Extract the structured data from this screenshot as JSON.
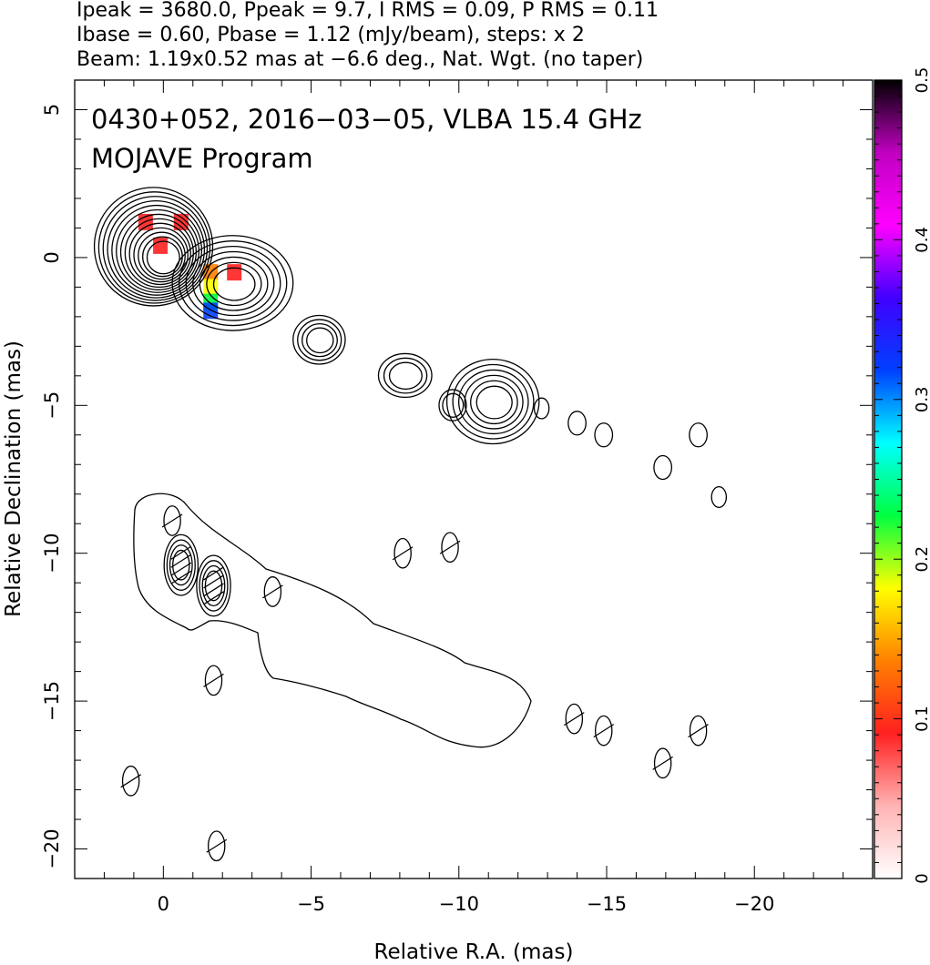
{
  "header": {
    "line1": "Ipeak = 3680.0, Ppeak = 9.7, I RMS = 0.09, P RMS = 0.11",
    "line2": "Ibase = 0.60, Pbase = 1.12 (mJy/beam), steps: x 2",
    "line3": "Beam: 1.19x0.52 mas at −6.6 deg., Nat. Wgt. (no taper)"
  },
  "plot_title": {
    "line1": "0430+052, 2016−03−05, VLBA 15.4 GHz",
    "line2": "MOJAVE Program"
  },
  "chart_data": {
    "type": "heatmap",
    "xlabel": "Relative R.A. (mas)",
    "ylabel": "Relative Declination (mas)",
    "xlim": [
      3,
      -24
    ],
    "ylim": [
      -21,
      6
    ],
    "x_ticks": [
      0,
      -5,
      -10,
      -15,
      -20
    ],
    "x_tick_labels": [
      "0",
      "−5",
      "−10",
      "−15",
      "−20"
    ],
    "y_ticks": [
      5,
      0,
      -5,
      -10,
      -15,
      -20
    ],
    "y_tick_labels": [
      "5",
      "0",
      "−5",
      "−10",
      "−15",
      "−20"
    ],
    "colorbar": {
      "min": 0,
      "max": 0.5,
      "ticks": [
        0,
        0.1,
        0.2,
        0.3,
        0.4,
        0.5
      ],
      "tick_labels": [
        "0",
        "0.1",
        "0.2",
        "0.3",
        "0.4",
        "0.5"
      ],
      "colormap": [
        "#ffffff",
        "#ffb3b3",
        "#ff2020",
        "#ff8000",
        "#ffff00",
        "#00ff40",
        "#00ffff",
        "#0040ff",
        "#4000ff",
        "#ff00ff",
        "#c000c0",
        "#000000"
      ]
    },
    "contour_levels_note": "Ibase = 0.60 mJy/beam, steps x 2",
    "total_intensity_components": [
      {
        "x": 0.0,
        "y": 0.0,
        "peak": 3680.0,
        "levels": 13
      },
      {
        "x": -2.4,
        "y": -0.9,
        "levels": 7
      },
      {
        "x": -5.3,
        "y": -2.8,
        "levels": 4
      },
      {
        "x": -8.2,
        "y": -4.0,
        "levels": 3
      },
      {
        "x": -9.8,
        "y": -5.0,
        "levels": 2
      },
      {
        "x": -11.2,
        "y": -4.9,
        "levels": 6
      },
      {
        "x": -12.8,
        "y": -5.1,
        "levels": 1
      },
      {
        "x": -14.0,
        "y": -5.6,
        "levels": 1
      },
      {
        "x": -14.9,
        "y": -6.0,
        "levels": 1
      },
      {
        "x": -16.9,
        "y": -7.1,
        "levels": 1
      },
      {
        "x": -18.1,
        "y": -6.0,
        "levels": 1
      },
      {
        "x": -18.8,
        "y": -8.1,
        "levels": 1
      }
    ],
    "polarized_intensity_components": [
      {
        "x": -0.3,
        "y": -8.9,
        "levels": 1
      },
      {
        "x": -0.6,
        "y": -10.4,
        "levels": 4
      },
      {
        "x": -1.7,
        "y": -11.1,
        "levels": 4
      },
      {
        "x": -1.7,
        "y": -14.3,
        "levels": 1
      },
      {
        "x": -3.7,
        "y": -11.3,
        "levels": 1
      },
      {
        "x": -8.1,
        "y": -10.0,
        "levels": 1
      },
      {
        "x": -9.7,
        "y": -9.8,
        "levels": 1
      },
      {
        "x": -13.9,
        "y": -15.6,
        "levels": 1
      },
      {
        "x": -14.9,
        "y": -16.0,
        "levels": 1
      },
      {
        "x": -16.9,
        "y": -17.1,
        "levels": 1
      },
      {
        "x": -18.1,
        "y": -16.0,
        "levels": 1
      },
      {
        "x": 1.1,
        "y": -17.7,
        "levels": 1
      },
      {
        "x": -1.8,
        "y": -19.9,
        "levels": 1
      }
    ],
    "fractional_polarization_pixels": [
      {
        "x": 0.1,
        "y": 0.4,
        "value": 0.08
      },
      {
        "x": 0.6,
        "y": 1.2,
        "value": 0.1
      },
      {
        "x": -0.6,
        "y": 1.2,
        "value": 0.1
      },
      {
        "x": -1.6,
        "y": -0.5,
        "value": 0.12
      },
      {
        "x": -1.6,
        "y": -1.0,
        "value": 0.17
      },
      {
        "x": -1.6,
        "y": -1.5,
        "value": 0.22
      },
      {
        "x": -1.6,
        "y": -1.8,
        "value": 0.3
      },
      {
        "x": -2.4,
        "y": -0.5,
        "value": 0.1
      }
    ]
  }
}
